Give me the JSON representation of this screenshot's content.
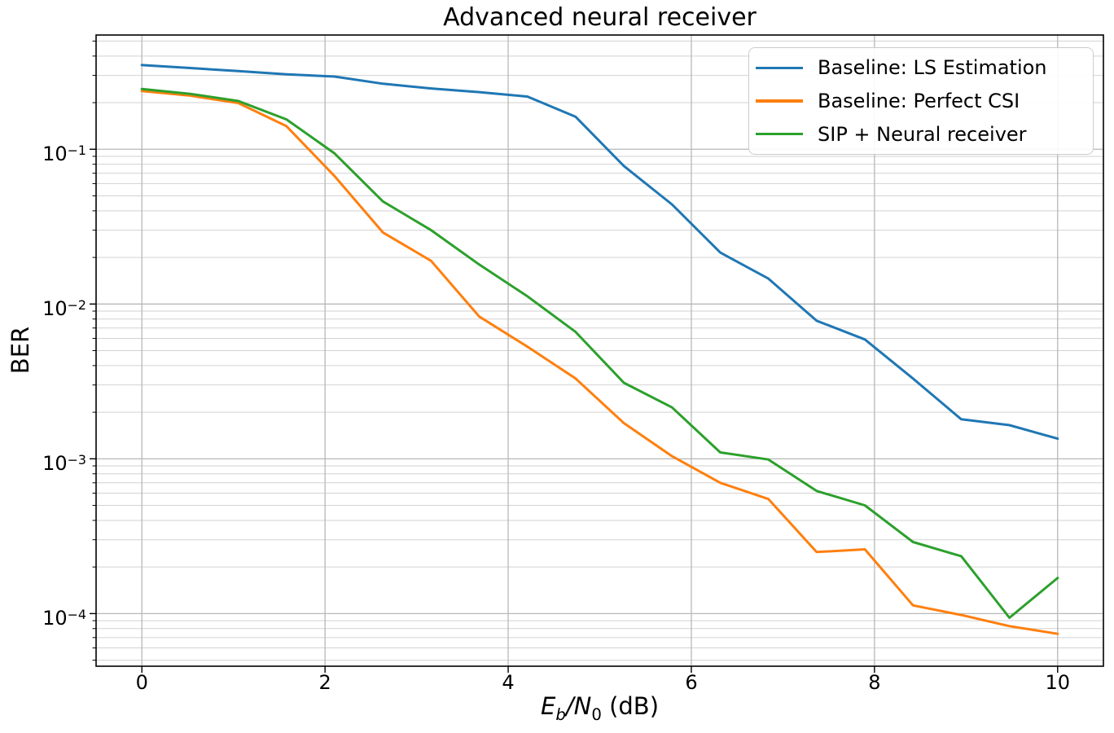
{
  "figure": {
    "title": "Advanced neural receiver",
    "ylabel": "BER",
    "xlabel_segments": [
      {
        "t": "E",
        "italic": true
      },
      {
        "t": "b",
        "italic": true,
        "sub": true
      },
      {
        "t": "/",
        "italic": true
      },
      {
        "t": "N",
        "italic": true
      },
      {
        "t": "0",
        "sub": true
      },
      {
        "t": " (dB)"
      }
    ]
  },
  "axes": {
    "xlim": [
      -0.5,
      10.5
    ],
    "ylim_log": [
      -4.34,
      -0.262
    ],
    "xticks": [
      0,
      2,
      4,
      6,
      8,
      10
    ],
    "ytick_exponents": [
      -1,
      -2,
      -3,
      -4
    ],
    "grid_major_color": "#b8b8b8",
    "grid_minor_color": "#d2d2d2",
    "spine_color": "#000000",
    "background": "#ffffff"
  },
  "chart_data": {
    "type": "line",
    "title": "Advanced neural receiver",
    "xlabel": "Eb/N0 (dB)",
    "ylabel": "BER",
    "yscale": "log",
    "grid": "both",
    "legend_position": "upper right",
    "xlim": [
      -0.5,
      10.5
    ],
    "ylim": [
      4.6e-05,
      0.55
    ],
    "x": [
      0.0,
      0.526,
      1.053,
      1.579,
      2.105,
      2.632,
      3.158,
      3.684,
      4.211,
      4.737,
      5.263,
      5.789,
      6.316,
      6.842,
      7.368,
      7.895,
      8.421,
      8.947,
      9.474,
      10.0
    ],
    "series": [
      {
        "name": "Baseline: LS Estimation",
        "color": "#1f77b4",
        "values": [
          0.35,
          0.335,
          0.32,
          0.305,
          0.295,
          0.265,
          0.247,
          0.234,
          0.219,
          0.162,
          0.078,
          0.044,
          0.0215,
          0.0146,
          0.0078,
          0.0059,
          0.0033,
          0.0018,
          0.00165,
          0.00135
        ]
      },
      {
        "name": "Baseline: Perfect CSI",
        "color": "#ff7f0e",
        "values": [
          0.238,
          0.222,
          0.199,
          0.141,
          0.067,
          0.029,
          0.019,
          0.0083,
          0.0053,
          0.0033,
          0.0017,
          0.00104,
          0.0007,
          0.00055,
          0.00025,
          0.00026,
          0.000113,
          9.8e-05,
          8.3e-05,
          7.4e-05
        ]
      },
      {
        "name": "SIP + Neural receiver",
        "color": "#2ca02c",
        "values": [
          0.245,
          0.228,
          0.205,
          0.156,
          0.094,
          0.046,
          0.03,
          0.018,
          0.0112,
          0.0066,
          0.0031,
          0.00215,
          0.0011,
          0.00099,
          0.00062,
          0.0005,
          0.00029,
          0.000235,
          9.4e-05,
          0.00017
        ]
      }
    ]
  }
}
